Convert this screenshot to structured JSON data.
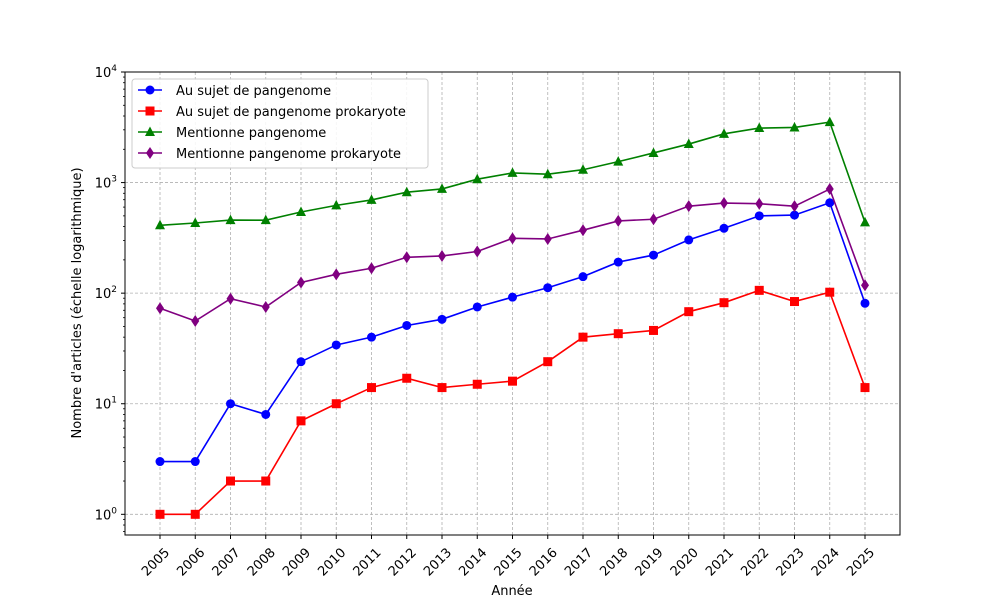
{
  "chart_data": {
    "type": "line",
    "title": "",
    "xlabel": "Année",
    "ylabel": "Nombre d'articles (échelle logarithmique)",
    "yscale": "log",
    "ylim": [
      0.65,
      10000
    ],
    "y_ticks": [
      {
        "value": 1,
        "base": "10",
        "exp": "0"
      },
      {
        "value": 10,
        "base": "10",
        "exp": "1"
      },
      {
        "value": 100,
        "base": "10",
        "exp": "2"
      },
      {
        "value": 1000,
        "base": "10",
        "exp": "3"
      },
      {
        "value": 10000,
        "base": "10",
        "exp": "4"
      }
    ],
    "grid": true,
    "legend_position": "upper-left",
    "x": [
      "2005",
      "2006",
      "2007",
      "2008",
      "2009",
      "2010",
      "2011",
      "2012",
      "2013",
      "2014",
      "2015",
      "2016",
      "2017",
      "2018",
      "2019",
      "2020",
      "2021",
      "2022",
      "2023",
      "2024",
      "2025"
    ],
    "series": [
      {
        "name": "Au sujet de pangenome",
        "color": "#0000ff",
        "marker": "circle",
        "values": [
          3,
          3,
          10,
          8,
          24,
          34,
          40,
          51,
          58,
          75,
          92,
          112,
          141,
          191,
          221,
          303,
          386,
          500,
          508,
          657,
          81
        ]
      },
      {
        "name": "Au sujet de pangenome prokaryote",
        "color": "#ff0000",
        "marker": "square",
        "values": [
          1,
          1,
          2,
          2,
          7,
          10,
          14,
          17,
          14,
          15,
          16,
          24,
          40,
          43,
          46,
          68,
          82,
          106,
          84,
          102,
          14
        ]
      },
      {
        "name": "Mentionne pangenome",
        "color": "#008000",
        "marker": "triangle",
        "values": [
          411,
          431,
          458,
          457,
          542,
          622,
          697,
          818,
          876,
          1073,
          1223,
          1190,
          1307,
          1546,
          1853,
          2231,
          2760,
          3112,
          3150,
          3520,
          437
        ]
      },
      {
        "name": "Mentionne pangenome prokaryote",
        "color": "#800080",
        "marker": "diamond",
        "values": [
          73,
          56,
          89,
          75,
          125,
          148,
          168,
          211,
          217,
          238,
          313,
          309,
          371,
          450,
          466,
          612,
          653,
          644,
          612,
          874,
          118
        ]
      }
    ]
  }
}
